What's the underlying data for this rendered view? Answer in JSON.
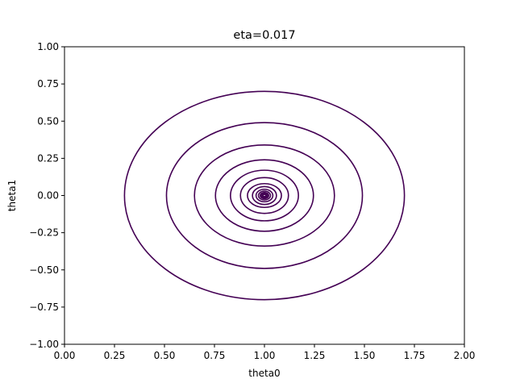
{
  "chart_data": {
    "type": "contour",
    "title": "eta=0.017",
    "xlabel": "theta0",
    "ylabel": "theta1",
    "xlim": [
      0.0,
      2.0
    ],
    "ylim": [
      -1.0,
      1.0
    ],
    "xticks": [
      0.0,
      0.25,
      0.5,
      0.75,
      1.0,
      1.25,
      1.5,
      1.75,
      2.0
    ],
    "xtick_labels": [
      "0.00",
      "0.25",
      "0.50",
      "0.75",
      "1.00",
      "1.25",
      "1.50",
      "1.75",
      "2.00"
    ],
    "yticks": [
      -1.0,
      -0.75,
      -0.5,
      -0.25,
      0.0,
      0.25,
      0.5,
      0.75,
      1.0
    ],
    "ytick_labels": [
      "−1.00",
      "−0.75",
      "−0.50",
      "−0.25",
      "0.00",
      "0.25",
      "0.50",
      "0.75",
      "1.00"
    ],
    "grid": false,
    "line_color": "#440154",
    "center": [
      1.0,
      0.0
    ],
    "contours": [
      {
        "rx": 0.7,
        "ry": 0.7
      },
      {
        "rx": 0.49,
        "ry": 0.49
      },
      {
        "rx": 0.35,
        "ry": 0.34
      },
      {
        "rx": 0.245,
        "ry": 0.24
      },
      {
        "rx": 0.17,
        "ry": 0.17
      },
      {
        "rx": 0.12,
        "ry": 0.12
      },
      {
        "rx": 0.085,
        "ry": 0.08
      },
      {
        "rx": 0.06,
        "ry": 0.06
      },
      {
        "rx": 0.042,
        "ry": 0.042
      },
      {
        "rx": 0.03,
        "ry": 0.03
      },
      {
        "rx": 0.021,
        "ry": 0.021
      },
      {
        "rx": 0.015,
        "ry": 0.015
      },
      {
        "rx": 0.01,
        "ry": 0.01
      },
      {
        "rx": 0.007,
        "ry": 0.007
      }
    ]
  }
}
